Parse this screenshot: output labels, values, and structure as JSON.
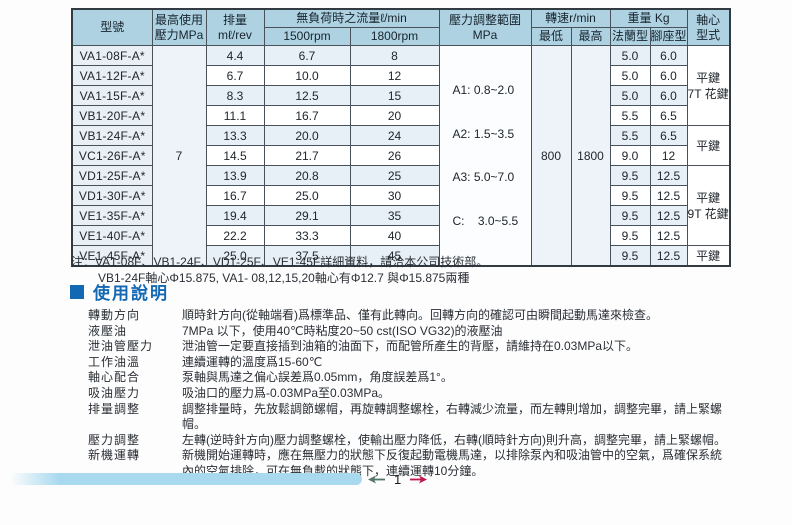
{
  "colors": {
    "header_bg": "#aed2e2",
    "stripe": "#e7f0f7",
    "accent_blue": "#1268b3",
    "footer_bar": "#a8d9ef",
    "arrow_prev": "#53766b",
    "arrow_next": "#c2174c"
  },
  "table": {
    "header": {
      "model": "型號",
      "max_pressure_l1": "最高使用",
      "max_pressure_l2": "壓力MPa",
      "displacement_l1": "排量",
      "displacement_l2": "mℓ/rev",
      "flow_group": "無負荷時之流量ℓ/min",
      "flow_col_1": "1500rpm",
      "flow_col_2": "1800rpm",
      "pressure_l1": "壓力調整範圍",
      "pressure_l2": "MPa",
      "speed_group": "轉速r/min",
      "speed_col_1": "最低",
      "speed_col_2": "最高",
      "weight_group": "重量 Kg",
      "weight_col_1": "法蘭型",
      "weight_col_2": "腳座型",
      "shaft_l1": "軸心",
      "shaft_l2": "型式"
    },
    "max_pressure_value": "7",
    "speed_min": "800",
    "speed_max": "1800",
    "pressure_ranges": [
      "A1: 0.8~2.0",
      "A2: 1.5~3.5",
      "A3: 5.0~7.0",
      "C:    3.0~5.5"
    ],
    "shaft_groups": [
      {
        "span": 4,
        "lines": [
          "平鍵",
          "7T 花鍵"
        ]
      },
      {
        "span": 2,
        "lines": [
          "平鍵"
        ]
      },
      {
        "span": 4,
        "lines": [
          "平鍵",
          "9T 花鍵"
        ]
      },
      {
        "span": 1,
        "lines": [
          "平鍵"
        ]
      }
    ],
    "rows": [
      {
        "model": "VA1-08F-A*",
        "disp": "4.4",
        "f1500": "6.7",
        "f1800": "8",
        "w_flange": "5.0",
        "w_foot": "6.0"
      },
      {
        "model": "VA1-12F-A*",
        "disp": "6.7",
        "f1500": "10.0",
        "f1800": "12",
        "w_flange": "5.0",
        "w_foot": "6.0"
      },
      {
        "model": "VA1-15F-A*",
        "disp": "8.3",
        "f1500": "12.5",
        "f1800": "15",
        "w_flange": "5.0",
        "w_foot": "6.0"
      },
      {
        "model": "VB1-20F-A*",
        "disp": "11.1",
        "f1500": "16.7",
        "f1800": "20",
        "w_flange": "5.5",
        "w_foot": "6.5"
      },
      {
        "model": "VB1-24F-A*",
        "disp": "13.3",
        "f1500": "20.0",
        "f1800": "24",
        "w_flange": "5.5",
        "w_foot": "6.5"
      },
      {
        "model": "VC1-26F-A*",
        "disp": "14.5",
        "f1500": "21.7",
        "f1800": "26",
        "w_flange": "9.0",
        "w_foot": "12"
      },
      {
        "model": "VD1-25F-A*",
        "disp": "13.9",
        "f1500": "20.8",
        "f1800": "25",
        "w_flange": "9.5",
        "w_foot": "12.5"
      },
      {
        "model": "VD1-30F-A*",
        "disp": "16.7",
        "f1500": "25.0",
        "f1800": "30",
        "w_flange": "9.5",
        "w_foot": "12.5"
      },
      {
        "model": "VE1-35F-A*",
        "disp": "19.4",
        "f1500": "29.1",
        "f1800": "35",
        "w_flange": "9.5",
        "w_foot": "12.5"
      },
      {
        "model": "VE1-40F-A*",
        "disp": "22.2",
        "f1500": "33.3",
        "f1800": "40",
        "w_flange": "9.5",
        "w_foot": "12.5"
      },
      {
        "model": "VE1-45F-A*",
        "disp": "25.0",
        "f1500": "37.5",
        "f1800": "45",
        "w_flange": "9.5",
        "w_foot": "12.5"
      }
    ]
  },
  "notes": {
    "line1": "注：VA1-08F、VB1-24F、VD1-25F、VE1-45F詳細資料，請洽本公司技術部。",
    "line2": "VB1-24F軸心Φ15.875, VA1- 08,12,15,20軸心有Φ12.7 與Φ15.875兩種"
  },
  "section": {
    "title": "使用說明"
  },
  "instructions": [
    {
      "label": "轉動方向",
      "text": "順時針方向(從軸端看)爲標準品、僅有此轉向。回轉方向的確認可由瞬間起動馬達來檢查。"
    },
    {
      "label": "液壓油",
      "text": "7MPa 以下，使用40℃時粘度20~50 cst(ISO VG32)的液壓油"
    },
    {
      "label": "泄油管壓力",
      "text": "泄油管一定要直接插到油箱的油面下，而配管所產生的背壓，請維持在0.03MPa以下。"
    },
    {
      "label": "工作油溫",
      "text": "連續運轉的溫度爲15-60℃"
    },
    {
      "label": "軸心配合",
      "text": "泵軸與馬達之偏心誤差爲0.05mm，角度誤差爲1°。"
    },
    {
      "label": "吸油壓力",
      "text": "吸油口的壓力爲-0.03MPa至0.03MPa。"
    },
    {
      "label": "排量調整",
      "text": "調整排量時，先放鬆調節螺帽，再旋轉調整螺栓，右轉減少流量，而左轉則增加，調整完畢，請上緊螺帽。"
    },
    {
      "label": "壓力調整",
      "text": "左轉(逆時針方向)壓力調整螺栓，使輸出壓力降低，右轉(順時針方向)則升高，調整完畢，請上緊螺帽。"
    },
    {
      "label": "新機運轉",
      "text": "新機開始運轉時，應在無壓力的狀態下反復起動電機馬達，以排除泵內和吸油管中的空氣，爲確保系統內的空氣排除，可在無負載的狀態下，連續運轉10分鐘。"
    }
  ],
  "footer": {
    "page_number": "1"
  }
}
